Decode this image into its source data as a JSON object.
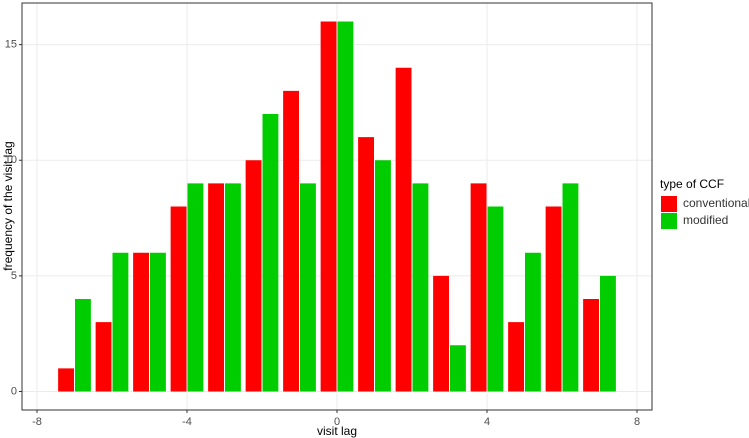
{
  "chart_data": {
    "type": "bar",
    "x_label": "visit lag",
    "y_label": "frequency of the visit lag",
    "legend_title": "type of CCF",
    "legend_position": "right",
    "x": [
      -7,
      -6,
      -5,
      -4,
      -3,
      -2,
      -1,
      0,
      1,
      2,
      3,
      4,
      5,
      6,
      7
    ],
    "series": [
      {
        "name": "conventional",
        "color": "#ff0000",
        "values": [
          1,
          3,
          6,
          8,
          9,
          10,
          13,
          16,
          11,
          14,
          5,
          9,
          3,
          8,
          4
        ]
      },
      {
        "name": "modified",
        "color": "#00cd00",
        "values": [
          4,
          6,
          6,
          9,
          9,
          12,
          9,
          16,
          10,
          9,
          2,
          8,
          6,
          9,
          5
        ]
      }
    ],
    "xlim": [
      -8.4,
      8.4
    ],
    "xticks": [
      -8,
      -4,
      0,
      4,
      8
    ],
    "ylim": [
      -0.8,
      16.8
    ],
    "yticks": [
      0,
      5,
      10,
      15
    ],
    "grid": true
  }
}
